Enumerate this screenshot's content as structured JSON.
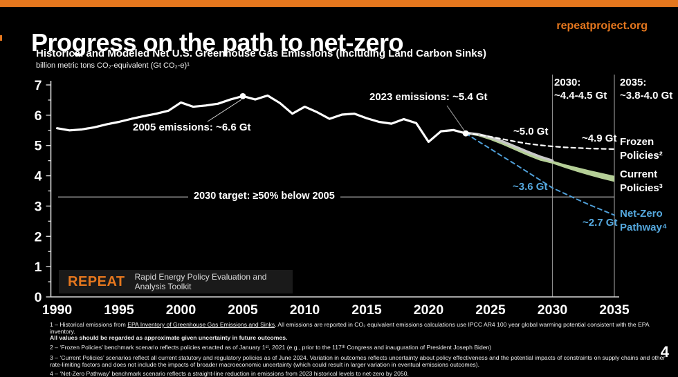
{
  "header": {
    "title": "Progress on the path to net-zero",
    "site": "repeatproject.org",
    "page_number": "4",
    "accent_color": "#E5771E"
  },
  "chart": {
    "heading": "Historical and Modeled Net U.S. Greenhouse Gas Emissions (Including Land Carbon Sinks)",
    "units_note": "billion metric tons CO₂-equivalent (Gt CO₂-e)¹"
  },
  "annotations": {
    "e2005": "2005 emissions: ~6.6 Gt",
    "e2023": "2023 emissions: ~5.4 Gt",
    "v2030_title": "2030:",
    "v2030_value": "~4.4-4.5 Gt",
    "v2035_title": "2035:",
    "v2035_value": "~3.8-4.0 Gt",
    "fp2030": "~5.0 Gt",
    "fp2035": "~4.9 Gt",
    "nz2030": "~3.6 Gt",
    "nz2035": "~2.7 Gt",
    "target": "2030 target: ≥50% below 2005"
  },
  "legend": {
    "frozen": "Frozen Policies²",
    "current": "Current Policies³",
    "netzero": "Net-Zero Pathway⁴",
    "netzero_color": "#55a8de"
  },
  "logo": {
    "name": "REPEAT",
    "tagline": "Rapid Energy Policy Evaluation and Analysis Toolkit"
  },
  "footnotes": {
    "f1_prefix": "1 – Historical emissions from ",
    "f1_link": "EPA Inventory of Greenhouse Gas Emissions and Sinks",
    "f1_rest": ". All emissions are reported in CO₂ equivalent emissions calculations use IPCC AR4 100 year global warming potential consistent with the EPA inventory.",
    "f1_bold": "All values should be regarded as approximate given uncertainty in future outcomes.",
    "f2": "2 – ‘Frozen Policies’ benchmark scenario reflects policies enacted as of January 1ˢᵗ, 2021 (e.g., prior to the 117ᵗʰ Congress and inauguration of President Joseph Biden)",
    "f3": "3 – ‘Current Policies’ scenarios reflect all current statutory and regulatory policies as of June 2024. Variation in outcomes reflects uncertainty about policy effectiveness and the potential impacts of constraints on supply chains and other rate-limiting factors and does not include the impacts of broader macroeconomic uncertainty (which could result in larger variation in eventual emissions outcomes).",
    "f4": "4 – ‘Net-Zero Pathway’ benchmark scenario reflects a straight-line reduction in emissions from 2023 historical levels to net-zero by 2050."
  },
  "chart_data": {
    "type": "line",
    "title": "Historical and Modeled Net U.S. Greenhouse Gas Emissions (Including Land Carbon Sinks)",
    "ylabel": "billion metric tons CO₂-equivalent (Gt CO₂-e)",
    "xlim": [
      1990,
      2035
    ],
    "ylim": [
      0,
      7
    ],
    "x_ticks": [
      1990,
      1995,
      2000,
      2005,
      2010,
      2015,
      2020,
      2025,
      2030,
      2035
    ],
    "y_ticks": [
      0,
      1,
      2,
      3,
      4,
      5,
      6,
      7
    ],
    "grid": false,
    "ref_vlines": [
      2030,
      2035
    ],
    "target_line": {
      "value": 3.3,
      "label": "2030 target: ≥50% below 2005"
    },
    "series": [
      {
        "name": "Historical",
        "color": "#ffffff",
        "style": "solid",
        "width": 3.2,
        "x": [
          1990,
          1991,
          1992,
          1993,
          1994,
          1995,
          1996,
          1997,
          1998,
          1999,
          2000,
          2001,
          2002,
          2003,
          2004,
          2005,
          2006,
          2007,
          2008,
          2009,
          2010,
          2011,
          2012,
          2013,
          2014,
          2015,
          2016,
          2017,
          2018,
          2019,
          2020,
          2021,
          2022,
          2023
        ],
        "y": [
          5.57,
          5.5,
          5.53,
          5.6,
          5.7,
          5.78,
          5.88,
          5.97,
          6.05,
          6.15,
          6.42,
          6.28,
          6.32,
          6.38,
          6.52,
          6.63,
          6.52,
          6.65,
          6.4,
          6.05,
          6.28,
          6.1,
          5.88,
          6.02,
          6.05,
          5.9,
          5.78,
          5.72,
          5.87,
          5.74,
          5.12,
          5.47,
          5.51,
          5.4
        ]
      },
      {
        "name": "Frozen Policies",
        "color": "#ffffff",
        "style": "dashed",
        "width": 2.2,
        "x": [
          2023,
          2024,
          2025,
          2026,
          2027,
          2028,
          2029,
          2030,
          2031,
          2032,
          2033,
          2034,
          2035
        ],
        "y": [
          5.4,
          5.36,
          5.29,
          5.21,
          5.13,
          5.06,
          5.01,
          4.97,
          4.94,
          4.92,
          4.9,
          4.89,
          4.88
        ]
      },
      {
        "name": "Net-Zero Pathway",
        "color": "#4f9fd8",
        "style": "dashed",
        "width": 2,
        "x": [
          2023,
          2024,
          2025,
          2026,
          2027,
          2028,
          2029,
          2030,
          2031,
          2032,
          2033,
          2034,
          2035
        ],
        "y": [
          5.4,
          5.14,
          4.89,
          4.63,
          4.38,
          4.12,
          3.86,
          3.6,
          3.41,
          3.22,
          3.04,
          2.87,
          2.7
        ]
      }
    ],
    "band": {
      "name": "Current Policies",
      "color": "#b5cf97",
      "edge_color": "#c9c9c9",
      "x": [
        2023,
        2024,
        2025,
        2026,
        2027,
        2028,
        2029,
        2030,
        2031,
        2032,
        2033,
        2034,
        2035
      ],
      "upper": [
        5.42,
        5.37,
        5.27,
        5.13,
        4.96,
        4.79,
        4.63,
        4.5,
        4.38,
        4.28,
        4.18,
        4.09,
        4.0
      ],
      "lower": [
        5.38,
        5.31,
        5.18,
        5.02,
        4.84,
        4.66,
        4.5,
        4.4,
        4.26,
        4.13,
        4.01,
        3.9,
        3.8
      ]
    },
    "markers": [
      {
        "year": 2005,
        "value": 6.63,
        "label": "2005 emissions: ~6.6 Gt"
      },
      {
        "year": 2023,
        "value": 5.4,
        "label": "2023 emissions: ~5.4 Gt"
      }
    ],
    "point_labels": [
      {
        "series": "Frozen Policies",
        "year": 2030,
        "text": "~5.0 Gt"
      },
      {
        "series": "Frozen Policies",
        "year": 2035,
        "text": "~4.9 Gt"
      },
      {
        "series": "Net-Zero Pathway",
        "year": 2030,
        "text": "~3.6 Gt"
      },
      {
        "series": "Net-Zero Pathway",
        "year": 2035,
        "text": "~2.7 Gt"
      },
      {
        "series": "Current Policies",
        "year": 2030,
        "text": "2030: ~4.4-4.5 Gt"
      },
      {
        "series": "Current Policies",
        "year": 2035,
        "text": "2035: ~3.8-4.0 Gt"
      }
    ]
  }
}
